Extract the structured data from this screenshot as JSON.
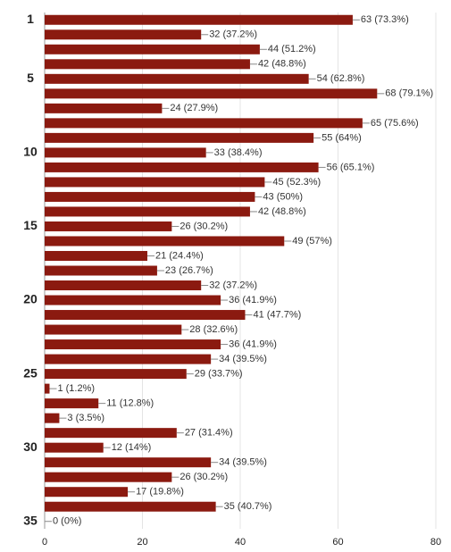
{
  "chart_data": {
    "type": "bar",
    "orientation": "horizontal",
    "categories": [
      "1",
      null,
      null,
      null,
      "5",
      null,
      null,
      null,
      null,
      "10",
      null,
      null,
      null,
      null,
      "15",
      null,
      null,
      null,
      null,
      "20",
      null,
      null,
      null,
      null,
      "25",
      null,
      null,
      null,
      null,
      "30",
      null,
      null,
      null,
      null,
      "35"
    ],
    "values": [
      63,
      32,
      44,
      42,
      54,
      68,
      24,
      65,
      55,
      33,
      56,
      45,
      43,
      42,
      26,
      49,
      21,
      23,
      32,
      36,
      41,
      28,
      36,
      34,
      29,
      1,
      11,
      3,
      27,
      12,
      34,
      26,
      17,
      35,
      0
    ],
    "value_labels": [
      "63 (73.3%)",
      "32 (37.2%)",
      "44 (51.2%)",
      "42 (48.8%)",
      "54 (62.8%)",
      "68 (79.1%)",
      "24 (27.9%)",
      "65 (75.6%)",
      "55 (64%)",
      "33 (38.4%)",
      "56 (65.1%)",
      "45 (52.3%)",
      "43 (50%)",
      "42 (48.8%)",
      "26 (30.2%)",
      "49 (57%)",
      "21 (24.4%)",
      "23 (26.7%)",
      "32 (37.2%)",
      "36 (41.9%)",
      "41 (47.7%)",
      "28 (32.6%)",
      "36 (41.9%)",
      "34 (39.5%)",
      "29 (33.7%)",
      "1 (1.2%)",
      "11 (12.8%)",
      "3 (3.5%)",
      "27 (31.4%)",
      "12 (14%)",
      "34 (39.5%)",
      "26 (30.2%)",
      "17 (19.8%)",
      "35 (40.7%)",
      "0 (0%)"
    ],
    "color": "#8b1a10",
    "xlim": [
      0,
      80
    ],
    "xticks": [
      0,
      20,
      40,
      60,
      80
    ],
    "grid": true
  }
}
